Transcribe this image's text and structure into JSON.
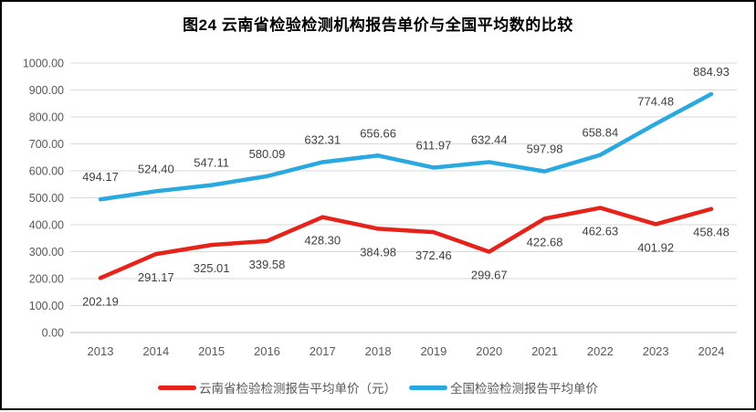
{
  "header": {
    "title": "图24 云南省检验检测机构报告单价与全国平均数的比较"
  },
  "chart_data": {
    "type": "line",
    "title": "图24 云南省检验检测机构报告单价与全国平均数的比较",
    "categories": [
      "2013",
      "2014",
      "2015",
      "2016",
      "2017",
      "2018",
      "2019",
      "2020",
      "2021",
      "2022",
      "2023",
      "2024"
    ],
    "series": [
      {
        "name": "云南省检验检测报告平均单价（元）",
        "color": "#E5231B",
        "label_position": "below",
        "values": [
          202.19,
          291.17,
          325.01,
          339.58,
          428.3,
          384.98,
          372.46,
          299.67,
          422.68,
          462.63,
          401.92,
          458.48
        ]
      },
      {
        "name": "全国检验检测报告平均单价",
        "color": "#29A9E0",
        "label_position": "above",
        "values": [
          494.17,
          524.4,
          547.11,
          580.09,
          632.31,
          656.66,
          611.97,
          632.44,
          597.98,
          658.84,
          774.48,
          884.93
        ]
      }
    ],
    "xlabel": "",
    "ylabel": "",
    "ylim": [
      0,
      1000
    ],
    "ytick_step": 100,
    "ytick_decimals": 2,
    "grid": true,
    "legend_position": "bottom",
    "colors": {
      "grid": "#D9D9D9",
      "axis_line": "#BFBFBF",
      "tick_text": "#595959",
      "data_label": "#404040",
      "background": "#FFFFFF",
      "frame_border": "#000000"
    }
  }
}
